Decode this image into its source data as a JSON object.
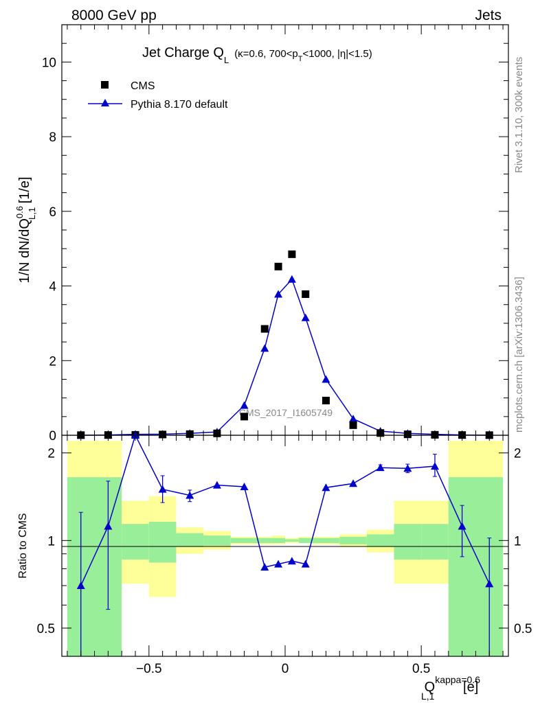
{
  "header": {
    "left": "8000 GeV pp",
    "right": "Jets"
  },
  "title": {
    "main": "Jet Charge Q",
    "main_sub": "L",
    "details_pre": "(κ=0.6, 700<p",
    "details_sub": "T",
    "details_post": "<1000, |η|<1.5)"
  },
  "y_label": {
    "pre": "1/N dN/dQ",
    "sup": "0.6",
    "sub": "L,1",
    "post": " [1/e]"
  },
  "ratio_label": "Ratio to CMS",
  "x_label": {
    "pre": "Q",
    "sup": "kappa=0.6",
    "sub": "L,1",
    "post": " [e]"
  },
  "side_text": {
    "rivet": "Rivet 3.1.10,  300k events",
    "site": "mcplots.cern.ch [arXiv:1306.3436]"
  },
  "watermark": "CMS_2017_I1605749",
  "colors": {
    "mc": "#0000cc",
    "band_stat": "#99ee99",
    "band_total": "#ffff99",
    "data": "#000000"
  },
  "chart_data": [
    {
      "type": "scatter",
      "panel": "main",
      "ylim": [
        0,
        11
      ],
      "xlim": [
        -0.82,
        0.82
      ],
      "y_ticks": [
        "0",
        "2",
        "4",
        "6",
        "8",
        "10"
      ],
      "legend": {
        "placement": "top-left",
        "entries": [
          "CMS",
          "Pythia 8.170 default"
        ]
      },
      "x": [
        -0.75,
        -0.65,
        -0.55,
        -0.45,
        -0.35,
        -0.25,
        -0.15,
        -0.075,
        -0.025,
        0.025,
        0.075,
        0.15,
        0.25,
        0.35,
        0.45,
        0.55,
        0.65,
        0.75
      ],
      "series": [
        {
          "name": "CMS",
          "marker": "square",
          "values": [
            0.003,
            0.006,
            0.01,
            0.02,
            0.03,
            0.05,
            0.5,
            2.85,
            4.52,
            4.85,
            3.78,
            0.93,
            0.27,
            0.06,
            0.025,
            0.012,
            0.006,
            0.003
          ]
        },
        {
          "name": "Pythia 8.170 default",
          "marker": "triangle",
          "values": [
            0.002,
            0.007,
            0.025,
            0.03,
            0.05,
            0.09,
            0.8,
            2.33,
            3.78,
            4.18,
            3.15,
            1.5,
            0.44,
            0.11,
            0.05,
            0.025,
            0.007,
            0.002
          ]
        }
      ]
    },
    {
      "type": "line",
      "panel": "ratio",
      "y_scale": "log",
      "ylim": [
        0.4,
        2.3
      ],
      "xlim": [
        -0.82,
        0.82
      ],
      "y_ticks": [
        "0.5",
        "1",
        "2"
      ],
      "x_ticks": [
        "−0.5",
        "0",
        "0.5"
      ],
      "bins": [
        {
          "lo": -0.8,
          "hi": -0.6,
          "stat": [
            0.4,
            1.65
          ],
          "total": [
            0.4,
            2.2
          ]
        },
        {
          "lo": -0.6,
          "hi": -0.5,
          "stat": [
            0.86,
            1.14
          ],
          "total": [
            0.71,
            1.37
          ]
        },
        {
          "lo": -0.5,
          "hi": -0.4,
          "stat": [
            0.84,
            1.16
          ],
          "total": [
            0.64,
            1.42
          ]
        },
        {
          "lo": -0.4,
          "hi": -0.3,
          "stat": [
            0.95,
            1.06
          ],
          "total": [
            0.9,
            1.11
          ]
        },
        {
          "lo": -0.3,
          "hi": -0.2,
          "stat": [
            0.96,
            1.04
          ],
          "total": [
            0.93,
            1.08
          ]
        },
        {
          "lo": -0.2,
          "hi": -0.1,
          "stat": [
            0.98,
            1.02
          ],
          "total": [
            0.97,
            1.03
          ]
        },
        {
          "lo": -0.1,
          "hi": -0.05,
          "stat": [
            0.98,
            1.02
          ],
          "total": [
            0.97,
            1.03
          ]
        },
        {
          "lo": -0.05,
          "hi": 0.0,
          "stat": [
            0.98,
            1.02
          ],
          "total": [
            0.97,
            1.04
          ]
        },
        {
          "lo": 0.0,
          "hi": 0.05,
          "stat": [
            0.99,
            1.01
          ],
          "total": [
            0.98,
            1.02
          ]
        },
        {
          "lo": 0.05,
          "hi": 0.1,
          "stat": [
            0.98,
            1.02
          ],
          "total": [
            0.98,
            1.03
          ]
        },
        {
          "lo": 0.1,
          "hi": 0.2,
          "stat": [
            0.98,
            1.02
          ],
          "total": [
            0.97,
            1.03
          ]
        },
        {
          "lo": 0.2,
          "hi": 0.3,
          "stat": [
            0.97,
            1.03
          ],
          "total": [
            0.95,
            1.05
          ]
        },
        {
          "lo": 0.3,
          "hi": 0.4,
          "stat": [
            0.95,
            1.05
          ],
          "total": [
            0.91,
            1.09
          ]
        },
        {
          "lo": 0.4,
          "hi": 0.5,
          "stat": [
            0.86,
            1.14
          ],
          "total": [
            0.71,
            1.37
          ]
        },
        {
          "lo": 0.5,
          "hi": 0.6,
          "stat": [
            0.86,
            1.14
          ],
          "total": [
            0.71,
            1.37
          ]
        },
        {
          "lo": 0.6,
          "hi": 0.8,
          "stat": [
            0.4,
            1.65
          ],
          "total": [
            0.4,
            2.2
          ]
        }
      ],
      "series": [
        {
          "name": "Pythia 8.170 default",
          "x": [
            -0.75,
            -0.65,
            -0.55,
            -0.45,
            -0.35,
            -0.25,
            -0.15,
            -0.075,
            -0.025,
            0.025,
            0.075,
            0.15,
            0.25,
            0.35,
            0.45,
            0.55,
            0.65,
            0.75
          ],
          "values": [
            0.7,
            1.12,
            2.45,
            1.5,
            1.43,
            1.55,
            1.53,
            0.81,
            0.83,
            0.85,
            0.83,
            1.52,
            1.57,
            1.78,
            1.77,
            1.8,
            1.12,
            0.71
          ],
          "err_lo": [
            0.3,
            0.58,
            0,
            1.35,
            1.36,
            0,
            0,
            0,
            0,
            0,
            0,
            0,
            0,
            1.74,
            1.71,
            1.66,
            0.88,
            0.3
          ],
          "err_hi": [
            1.25,
            1.6,
            0,
            1.67,
            1.49,
            0,
            0,
            0,
            0,
            0,
            0,
            0,
            0,
            1.82,
            1.83,
            1.98,
            1.32,
            1.02
          ]
        }
      ]
    }
  ]
}
